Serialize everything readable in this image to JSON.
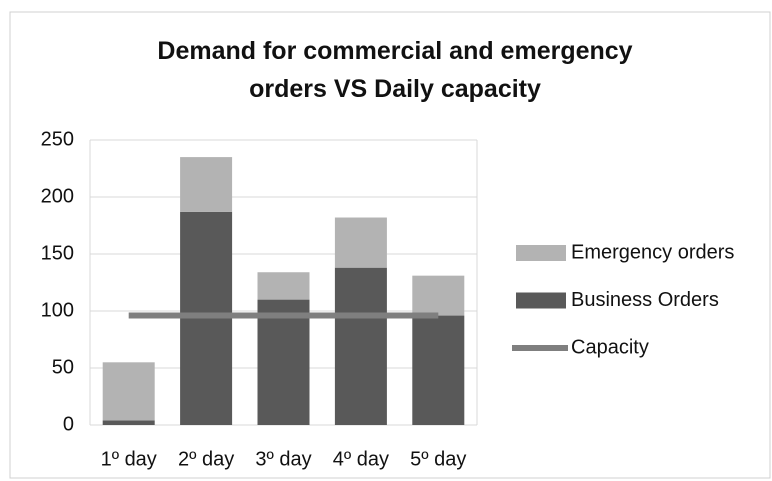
{
  "chart_data": {
    "type": "bar",
    "title": "Demand for commercial and emergency orders VS Daily capacity",
    "categories": [
      "1º day",
      "2º day",
      "3º day",
      "4º day",
      "5º day"
    ],
    "series": [
      {
        "name": "Emergency orders",
        "type": "bar",
        "color": "#b3b3b3",
        "values": [
          51,
          48,
          24,
          44,
          35
        ]
      },
      {
        "name": "Business Orders",
        "type": "bar",
        "color": "#595959",
        "values": [
          4,
          187,
          110,
          138,
          96
        ]
      },
      {
        "name": "Capacity",
        "type": "line",
        "color": "#7f7f7f",
        "values": [
          96,
          96,
          96,
          96,
          96
        ]
      }
    ],
    "stacked": true,
    "ylim": [
      0,
      250
    ],
    "yticks": [
      0,
      50,
      100,
      150,
      200,
      250
    ],
    "grid": true,
    "legend": "right"
  }
}
